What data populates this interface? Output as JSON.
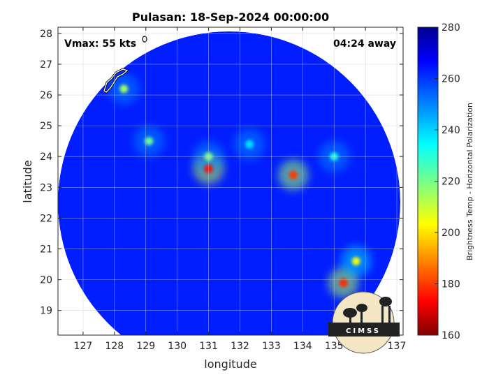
{
  "chart_data": {
    "type": "heatmap",
    "title": "Pulasan: 18-Sep-2024 00:00:00",
    "xlabel": "longitude",
    "ylabel": "latitude",
    "xlim": [
      126.2,
      137.2
    ],
    "ylim": [
      18.2,
      28.2
    ],
    "xticks": [
      127,
      128,
      129,
      130,
      131,
      132,
      133,
      134,
      135,
      136,
      137
    ],
    "yticks": [
      19,
      20,
      21,
      22,
      23,
      24,
      25,
      26,
      27,
      28
    ],
    "grid": true,
    "annotations": {
      "vmax": "Vmax: 55 kts",
      "away": "04:24 away"
    },
    "colorbar": {
      "label": "Brightness Temp - Horizontal Polarization",
      "min": 160,
      "max": 280,
      "ticks": [
        160,
        180,
        200,
        220,
        240,
        260,
        280
      ],
      "colormap": "jet"
    },
    "swath": {
      "center_lon": 131.7,
      "center_lat": 23.2,
      "background_value": 263
    },
    "features": [
      {
        "lon": 131.0,
        "lat": 23.6,
        "value": 175
      },
      {
        "lon": 131.0,
        "lat": 24.0,
        "value": 220
      },
      {
        "lon": 133.7,
        "lat": 23.4,
        "value": 180
      },
      {
        "lon": 135.3,
        "lat": 19.9,
        "value": 178
      },
      {
        "lon": 135.7,
        "lat": 20.6,
        "value": 205
      },
      {
        "lon": 135.0,
        "lat": 24.0,
        "value": 232
      },
      {
        "lon": 128.3,
        "lat": 26.2,
        "value": 215
      },
      {
        "lon": 129.1,
        "lat": 24.5,
        "value": 222
      },
      {
        "lon": 132.3,
        "lat": 24.4,
        "value": 238
      }
    ]
  },
  "logo": {
    "text": "CIMSS"
  }
}
